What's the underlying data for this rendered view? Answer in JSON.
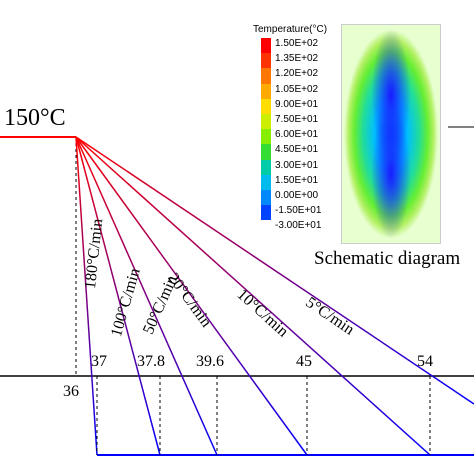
{
  "diagram": {
    "start_temp_label": "150°C",
    "schematic_label": "Schematic diagram",
    "rate_labels": [
      "180°C/min",
      "100°C/min",
      "50°C/min",
      "20°C/min",
      "10°C/min",
      "5°C/min"
    ],
    "time_labels": [
      "36",
      "37",
      "37.8",
      "39.6",
      "45",
      "54"
    ],
    "colors": {
      "hold": "#ff0000",
      "cooling_start": "#ff0000",
      "cooling_end": "#0000ff",
      "axis": "#000000"
    }
  },
  "legend": {
    "title": "Temperature(°C)",
    "entries": [
      "1.50E+02",
      "1.35E+02",
      "1.20E+02",
      "1.05E+02",
      "9.00E+01",
      "7.50E+01",
      "6.00E+01",
      "4.50E+01",
      "3.00E+01",
      "1.50E+01",
      "0.00E+00",
      "-1.50E+01",
      "-3.00E+01"
    ],
    "colors": [
      "#ff0000",
      "#ff3300",
      "#ff7700",
      "#ffaa00",
      "#ffdd00",
      "#ccee00",
      "#88ee00",
      "#33dd33",
      "#00ccaa",
      "#00bbee",
      "#0088ff",
      "#0044ff",
      "#0000cc"
    ]
  }
}
